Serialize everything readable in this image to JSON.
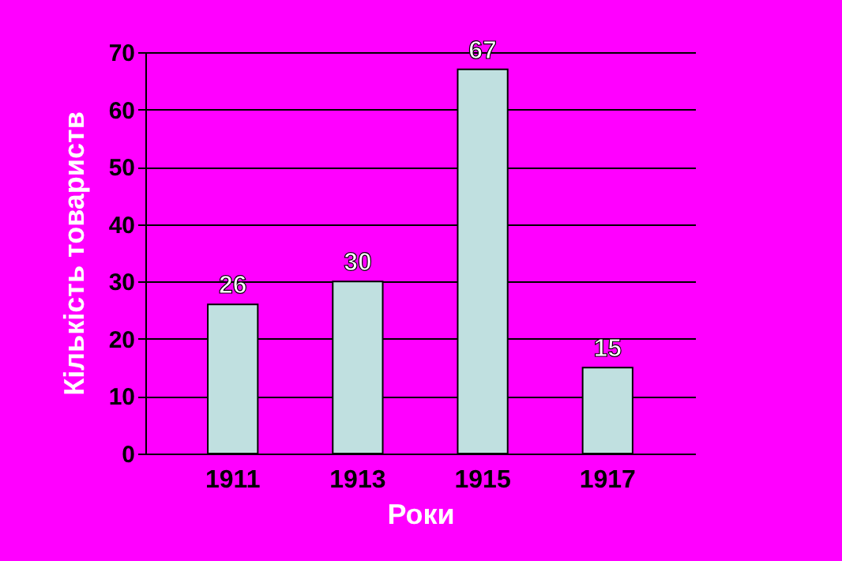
{
  "chart_data": {
    "type": "bar",
    "xlabel": "Роки",
    "ylabel": "Кількість товариств",
    "categories": [
      "1911",
      "1913",
      "1915",
      "1917"
    ],
    "values": [
      26,
      30,
      67,
      15
    ],
    "color": "#c0e0e0",
    "ylim": [
      0,
      70
    ],
    "yticks": [
      0,
      10,
      20,
      30,
      40,
      50,
      60,
      70
    ],
    "grid": "y",
    "data_labels": true
  }
}
